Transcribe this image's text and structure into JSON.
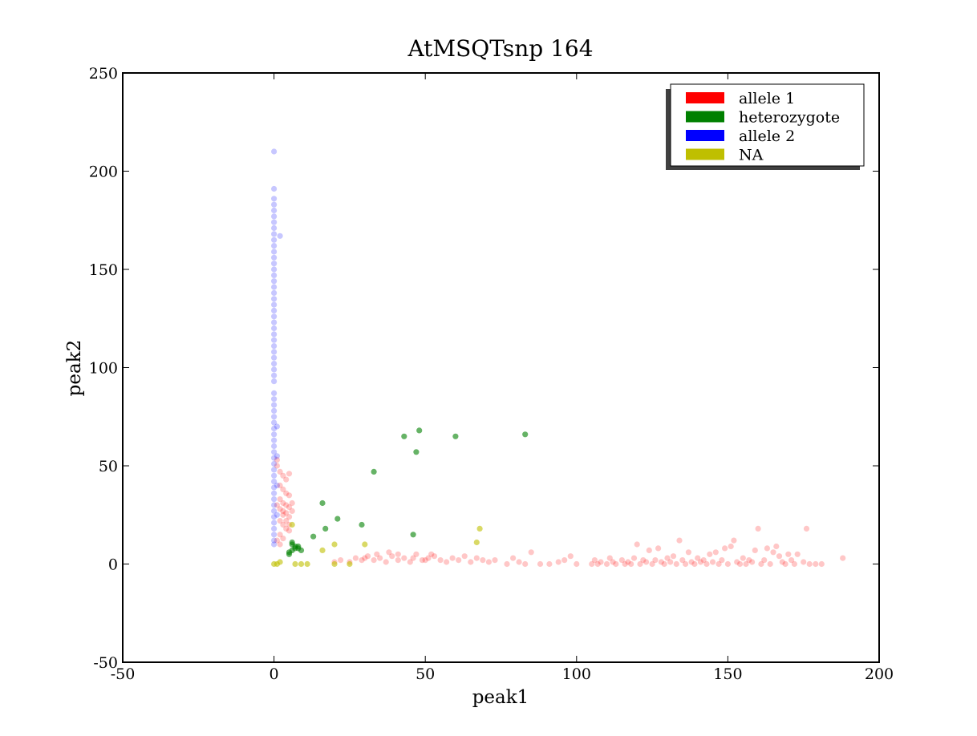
{
  "chart_data": {
    "type": "scatter",
    "title": "AtMSQTsnp 164",
    "xlabel": "peak1",
    "ylabel": "peak2",
    "xlim": [
      -50,
      200
    ],
    "ylim": [
      -50,
      250
    ],
    "xticks": [
      -50,
      0,
      50,
      100,
      150,
      200
    ],
    "yticks": [
      -50,
      0,
      50,
      100,
      150,
      200,
      250
    ],
    "grid": false,
    "legend_position": "top-right",
    "series": [
      {
        "name": "allele 1",
        "color": "#ff0000",
        "points": [
          [
            2,
            47
          ],
          [
            3,
            45
          ],
          [
            4,
            43
          ],
          [
            5,
            46
          ],
          [
            2,
            40
          ],
          [
            3,
            38
          ],
          [
            4,
            36
          ],
          [
            5,
            35
          ],
          [
            2,
            33
          ],
          [
            3,
            31
          ],
          [
            4,
            30
          ],
          [
            5,
            29
          ],
          [
            6,
            31
          ],
          [
            3,
            27
          ],
          [
            4,
            26
          ],
          [
            5,
            24
          ],
          [
            2,
            22
          ],
          [
            3,
            20
          ],
          [
            4,
            18
          ],
          [
            5,
            17
          ],
          [
            2,
            15
          ],
          [
            3,
            13
          ],
          [
            1,
            12
          ],
          [
            2,
            10
          ],
          [
            3,
            25
          ],
          [
            4,
            22
          ],
          [
            5,
            20
          ],
          [
            6,
            27
          ],
          [
            1,
            30
          ],
          [
            2,
            28
          ],
          [
            1,
            50
          ],
          [
            1,
            53
          ],
          [
            20,
            1
          ],
          [
            22,
            2
          ],
          [
            25,
            1
          ],
          [
            27,
            3
          ],
          [
            29,
            2
          ],
          [
            31,
            4
          ],
          [
            33,
            2
          ],
          [
            35,
            3
          ],
          [
            37,
            1
          ],
          [
            39,
            4
          ],
          [
            41,
            2
          ],
          [
            43,
            3
          ],
          [
            45,
            1
          ],
          [
            47,
            5
          ],
          [
            49,
            2
          ],
          [
            51,
            3
          ],
          [
            53,
            4
          ],
          [
            55,
            2
          ],
          [
            57,
            1
          ],
          [
            59,
            3
          ],
          [
            61,
            2
          ],
          [
            63,
            4
          ],
          [
            65,
            1
          ],
          [
            67,
            3
          ],
          [
            69,
            2
          ],
          [
            71,
            1
          ],
          [
            73,
            2
          ],
          [
            38,
            6
          ],
          [
            41,
            5
          ],
          [
            46,
            3
          ],
          [
            50,
            2
          ],
          [
            52,
            5
          ],
          [
            34,
            5
          ],
          [
            30,
            3
          ],
          [
            77,
            0
          ],
          [
            79,
            3
          ],
          [
            81,
            1
          ],
          [
            83,
            0
          ],
          [
            85,
            6
          ],
          [
            88,
            0
          ],
          [
            91,
            0
          ],
          [
            94,
            1
          ],
          [
            96,
            2
          ],
          [
            98,
            4
          ],
          [
            100,
            0
          ],
          [
            105,
            0
          ],
          [
            106,
            2
          ],
          [
            107,
            0
          ],
          [
            108,
            1
          ],
          [
            110,
            0
          ],
          [
            111,
            3
          ],
          [
            112,
            1
          ],
          [
            113,
            0
          ],
          [
            115,
            2
          ],
          [
            116,
            0
          ],
          [
            117,
            1
          ],
          [
            118,
            0
          ],
          [
            119,
            3
          ],
          [
            120,
            10
          ],
          [
            121,
            0
          ],
          [
            122,
            2
          ],
          [
            123,
            1
          ],
          [
            124,
            7
          ],
          [
            125,
            0
          ],
          [
            126,
            2
          ],
          [
            127,
            8
          ],
          [
            128,
            1
          ],
          [
            129,
            0
          ],
          [
            130,
            3
          ],
          [
            131,
            1
          ],
          [
            132,
            4
          ],
          [
            133,
            0
          ],
          [
            134,
            12
          ],
          [
            135,
            2
          ],
          [
            136,
            0
          ],
          [
            137,
            6
          ],
          [
            138,
            1
          ],
          [
            139,
            0
          ],
          [
            140,
            3
          ],
          [
            141,
            1
          ],
          [
            142,
            2
          ],
          [
            143,
            0
          ],
          [
            144,
            5
          ],
          [
            145,
            1
          ],
          [
            146,
            6
          ],
          [
            147,
            0
          ],
          [
            148,
            2
          ],
          [
            149,
            8
          ],
          [
            150,
            0
          ],
          [
            151,
            9
          ],
          [
            152,
            12
          ],
          [
            153,
            1
          ],
          [
            154,
            0
          ],
          [
            155,
            3
          ],
          [
            156,
            0
          ],
          [
            157,
            2
          ],
          [
            158,
            1
          ],
          [
            159,
            7
          ],
          [
            160,
            18
          ],
          [
            161,
            0
          ],
          [
            162,
            2
          ],
          [
            163,
            8
          ],
          [
            164,
            0
          ],
          [
            165,
            6
          ],
          [
            166,
            9
          ],
          [
            167,
            4
          ],
          [
            168,
            1
          ],
          [
            169,
            0
          ],
          [
            170,
            5
          ],
          [
            171,
            2
          ],
          [
            172,
            0
          ],
          [
            173,
            5
          ],
          [
            175,
            1
          ],
          [
            176,
            18
          ],
          [
            177,
            0
          ],
          [
            179,
            0
          ],
          [
            181,
            0
          ],
          [
            188,
            3
          ]
        ]
      },
      {
        "name": "heterozygote",
        "color": "#008000",
        "points": [
          [
            5,
            5
          ],
          [
            6,
            7
          ],
          [
            7,
            8
          ],
          [
            8,
            9
          ],
          [
            6,
            10
          ],
          [
            7,
            9
          ],
          [
            8,
            8
          ],
          [
            9,
            7
          ],
          [
            5,
            6
          ],
          [
            6,
            11
          ],
          [
            13,
            14
          ],
          [
            16,
            31
          ],
          [
            17,
            18
          ],
          [
            21,
            23
          ],
          [
            29,
            20
          ],
          [
            33,
            47
          ],
          [
            43,
            65
          ],
          [
            47,
            57
          ],
          [
            48,
            68
          ],
          [
            46,
            15
          ],
          [
            60,
            65
          ],
          [
            83,
            66
          ]
        ]
      },
      {
        "name": "allele 2",
        "color": "#0000ff",
        "points": [
          [
            0,
            210
          ],
          [
            0,
            191
          ],
          [
            0,
            186
          ],
          [
            0,
            183
          ],
          [
            0,
            180
          ],
          [
            0,
            177
          ],
          [
            0,
            174
          ],
          [
            0,
            171
          ],
          [
            0,
            168
          ],
          [
            0,
            165
          ],
          [
            0,
            162
          ],
          [
            0,
            159
          ],
          [
            0,
            156
          ],
          [
            0,
            153
          ],
          [
            0,
            150
          ],
          [
            0,
            147
          ],
          [
            0,
            144
          ],
          [
            0,
            141
          ],
          [
            0,
            138
          ],
          [
            0,
            135
          ],
          [
            0,
            132
          ],
          [
            0,
            129
          ],
          [
            0,
            126
          ],
          [
            0,
            123
          ],
          [
            0,
            120
          ],
          [
            0,
            117
          ],
          [
            0,
            114
          ],
          [
            0,
            111
          ],
          [
            0,
            108
          ],
          [
            0,
            105
          ],
          [
            0,
            102
          ],
          [
            0,
            99
          ],
          [
            0,
            96
          ],
          [
            0,
            93
          ],
          [
            0,
            87
          ],
          [
            0,
            84
          ],
          [
            0,
            81
          ],
          [
            0,
            78
          ],
          [
            0,
            75
          ],
          [
            0,
            72
          ],
          [
            0,
            69
          ],
          [
            0,
            66
          ],
          [
            0,
            63
          ],
          [
            0,
            60
          ],
          [
            0,
            57
          ],
          [
            0,
            54
          ],
          [
            0,
            51
          ],
          [
            0,
            48
          ],
          [
            0,
            45
          ],
          [
            0,
            42
          ],
          [
            0,
            39
          ],
          [
            0,
            36
          ],
          [
            0,
            33
          ],
          [
            0,
            30
          ],
          [
            0,
            27
          ],
          [
            0,
            24
          ],
          [
            0,
            21
          ],
          [
            0,
            18
          ],
          [
            0,
            15
          ],
          [
            0,
            12
          ],
          [
            0,
            10
          ],
          [
            2,
            167
          ],
          [
            1,
            70
          ],
          [
            1,
            55
          ],
          [
            1,
            40
          ],
          [
            1,
            25
          ]
        ]
      },
      {
        "name": "NA",
        "color": "#bfbf00",
        "points": [
          [
            0,
            0
          ],
          [
            1,
            0
          ],
          [
            2,
            1
          ],
          [
            6,
            20
          ],
          [
            7,
            0
          ],
          [
            9,
            0
          ],
          [
            11,
            0
          ],
          [
            16,
            7
          ],
          [
            20,
            10
          ],
          [
            20,
            0
          ],
          [
            25,
            0
          ],
          [
            30,
            10
          ],
          [
            67,
            11
          ],
          [
            68,
            18
          ]
        ]
      }
    ]
  }
}
